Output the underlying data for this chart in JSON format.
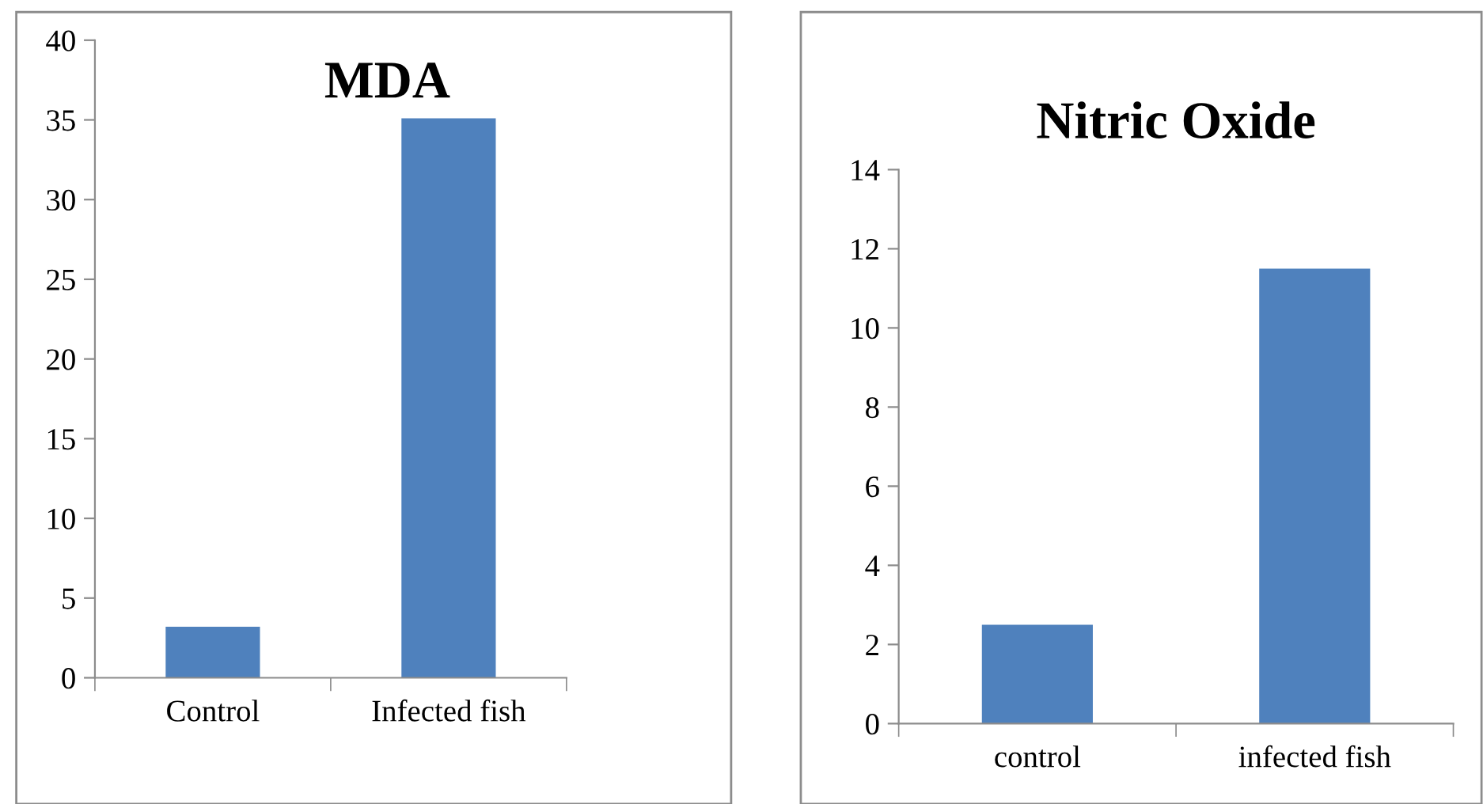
{
  "chart_data": [
    {
      "type": "bar",
      "title": "MDA",
      "categories": [
        "Control",
        "Infected fish"
      ],
      "values": [
        3.2,
        35.1
      ],
      "color": "#4f81bd",
      "ylim": [
        0,
        40
      ],
      "yticks": [
        0,
        5,
        10,
        15,
        20,
        25,
        30,
        35,
        40
      ],
      "grid": false,
      "legend": false
    },
    {
      "type": "bar",
      "title": "Nitric Oxide",
      "categories": [
        "control",
        "infected fish"
      ],
      "values": [
        2.5,
        11.5
      ],
      "color": "#4f81bd",
      "ylim": [
        0,
        14
      ],
      "yticks": [
        0,
        2,
        4,
        6,
        8,
        10,
        12,
        14
      ],
      "grid": false,
      "legend": false
    }
  ]
}
